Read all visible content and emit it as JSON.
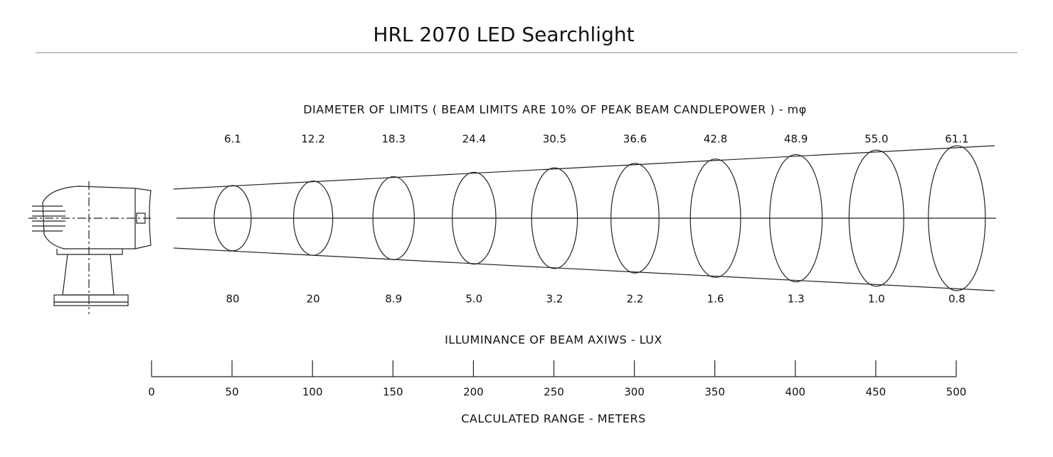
{
  "header": {
    "title": "HRL 2070 LED Searchlight"
  },
  "diameter": {
    "label": "DIAMETER OF LIMITS ( BEAM LIMITS ARE 10% OF PEAK BEAM CANDLEPOWER ) - mφ",
    "values": [
      "6.1",
      "12.2",
      "18.3",
      "24.4",
      "30.5",
      "36.6",
      "42.8",
      "48.9",
      "55.0",
      "61.1"
    ]
  },
  "illuminance": {
    "label": "ILLUMINANCE OF BEAM AXIWS - LUX",
    "values": [
      "80",
      "20",
      "8.9",
      "5.0",
      "3.2",
      "2.2",
      "1.6",
      "1.3",
      "1.0",
      "0.8"
    ]
  },
  "range": {
    "label": "CALCULATED RANGE - METERS",
    "ticks": [
      "0",
      "50",
      "100",
      "150",
      "200",
      "250",
      "300",
      "350",
      "400",
      "450",
      "500"
    ]
  }
}
